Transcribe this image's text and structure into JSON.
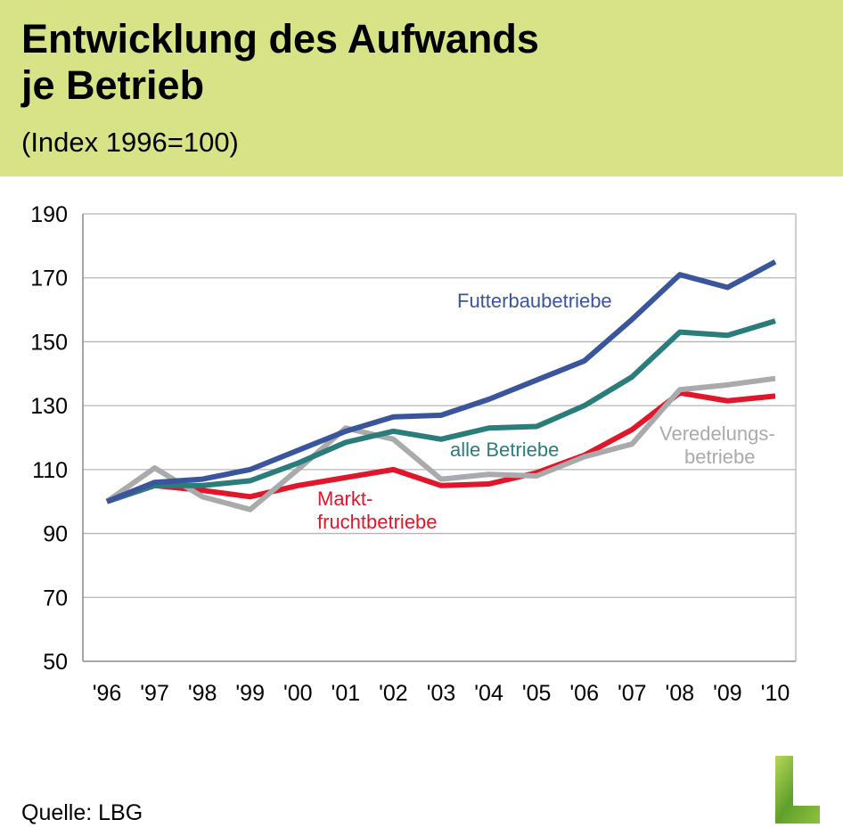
{
  "header": {
    "title_line1": "Entwicklung des Aufwands",
    "title_line2": "je Betrieb",
    "subtitle": "(Index 1996=100)"
  },
  "chart_data": {
    "type": "line",
    "title": "Entwicklung des Aufwands je Betrieb",
    "subtitle": "(Index 1996=100)",
    "xlabel": "",
    "ylabel": "",
    "categories": [
      "'96",
      "'97",
      "'98",
      "'99",
      "'00",
      "'01",
      "'02",
      "'03",
      "'04",
      "'05",
      "'06",
      "'07",
      "'08",
      "'09",
      "'10"
    ],
    "ylim": [
      50,
      190
    ],
    "yticks": [
      50,
      70,
      90,
      110,
      130,
      150,
      170,
      190
    ],
    "grid": true,
    "series": [
      {
        "name": "Futterbaubetriebe",
        "label_lines": [
          "Futterbaubetriebe"
        ],
        "color": "#3a559b",
        "values": [
          100,
          106,
          107,
          110,
          116,
          122,
          126.5,
          127,
          132,
          138,
          144,
          157,
          171,
          167,
          175
        ]
      },
      {
        "name": "alle Betriebe",
        "label_lines": [
          "alle Betriebe"
        ],
        "color": "#2a7d7b",
        "values": [
          100,
          105,
          105,
          106.5,
          112,
          118.5,
          122,
          119.5,
          123,
          123.5,
          130,
          139,
          153,
          152,
          156.5
        ]
      },
      {
        "name": "Marktfruchtbetriebe",
        "label_lines": [
          "Markt-",
          "fruchtbetriebe"
        ],
        "color": "#e0162b",
        "values": [
          100,
          105,
          103.5,
          101.5,
          105,
          107.5,
          110,
          105,
          105.5,
          109,
          114.5,
          122.5,
          134,
          131.5,
          133
        ]
      },
      {
        "name": "Veredelungsbetriebe",
        "label_lines": [
          "Veredelungs-",
          "betriebe"
        ],
        "color": "#a8aaac",
        "values": [
          100,
          110.5,
          101.5,
          97.5,
          110,
          123,
          119.5,
          107,
          108.5,
          108,
          114,
          118,
          135,
          136.5,
          138.5
        ]
      }
    ]
  },
  "footer": {
    "source": "Quelle: LBG"
  },
  "logo": {
    "text": "L"
  }
}
